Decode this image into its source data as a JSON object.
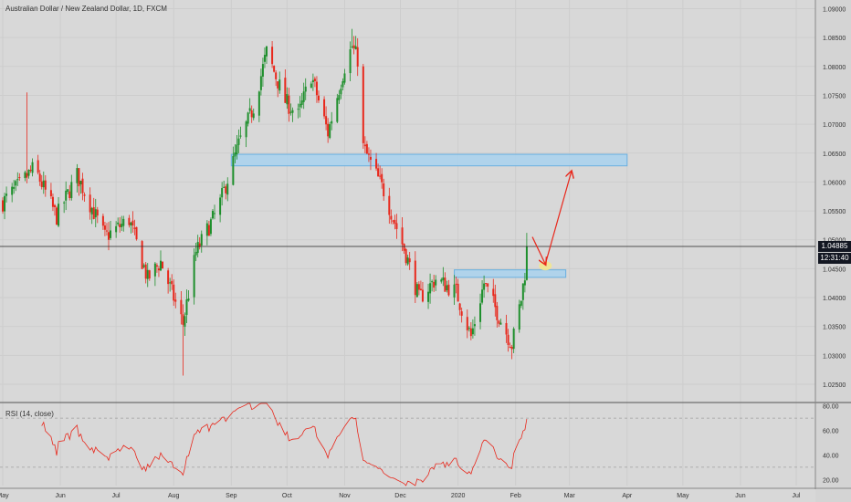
{
  "header": {
    "title": "Australian Dollar / New Zealand Dollar, 1D, FXCM"
  },
  "rsi_panel": {
    "title": "RSI (14, close)"
  },
  "price_axis": {
    "current_price": "1.04885",
    "countdown": "12:31:40"
  },
  "colors": {
    "background": "#d8d8d8",
    "up_candle": "#1e8f2c",
    "down_candle": "#e8281c",
    "zone_fill": "#a9d2ef",
    "zone_stroke": "#6ab0e0",
    "arrow": "#e8281c",
    "rsi_line": "#e8281c",
    "price_badge": "#131722"
  },
  "chart_data": [
    {
      "type": "candlestick",
      "symbol": "AUDNZD",
      "timeframe": "1D",
      "ylim": [
        1.022,
        1.0915
      ],
      "y_ticks": [
        "1.09000",
        "1.08500",
        "1.08000",
        "1.07500",
        "1.07000",
        "1.06500",
        "1.06000",
        "1.05500",
        "1.05000",
        "1.04500",
        "1.04000",
        "1.03500",
        "1.03000",
        "1.02500"
      ],
      "y_tick_values": [
        1.09,
        1.085,
        1.08,
        1.075,
        1.07,
        1.065,
        1.06,
        1.055,
        1.05,
        1.045,
        1.04,
        1.035,
        1.03,
        1.025
      ],
      "x_ticks": [
        "May",
        "Jun",
        "Jul",
        "Aug",
        "Sep",
        "Oct",
        "Nov",
        "Dec",
        "2020",
        "Feb",
        "Mar",
        "Apr",
        "May",
        "Jun",
        "Jul"
      ],
      "x_tick_dates": [
        "2019-05-01",
        "2019-06-01",
        "2019-07-01",
        "2019-08-01",
        "2019-09-01",
        "2019-10-01",
        "2019-11-01",
        "2019-12-01",
        "2020-01-01",
        "2020-02-01",
        "2020-03-01",
        "2020-04-01",
        "2020-05-01",
        "2020-06-01",
        "2020-07-01"
      ],
      "current_price_line": 1.04885,
      "zones": [
        {
          "from": "2019-09-01",
          "to": "2020-04-01",
          "low": 1.0628,
          "high": 1.0648
        },
        {
          "from": "2019-12-30",
          "to": "2020-02-28",
          "low": 1.0435,
          "high": 1.0448
        }
      ],
      "projection_arrows": [
        {
          "from": [
            "2020-02-10",
            1.0505
          ],
          "to": [
            "2020-02-17",
            1.0458
          ]
        },
        {
          "from": [
            "2020-02-17",
            1.0458
          ],
          "to": [
            "2020-03-02",
            1.0618
          ]
        }
      ],
      "highlight_circle": {
        "at": [
          "2020-02-17",
          1.0455
        ]
      },
      "anchors": [
        {
          "date": "2019-05-01",
          "close": 1.0565
        },
        {
          "date": "2019-05-10",
          "close": 1.0595
        },
        {
          "date": "2019-05-18",
          "close": 1.0625
        },
        {
          "date": "2019-05-30",
          "close": 1.054
        },
        {
          "date": "2019-06-10",
          "close": 1.0612
        },
        {
          "date": "2019-06-25",
          "close": 1.0505
        },
        {
          "date": "2019-07-08",
          "close": 1.0535
        },
        {
          "date": "2019-07-18",
          "close": 1.0432
        },
        {
          "date": "2019-07-25",
          "close": 1.0462
        },
        {
          "date": "2019-08-06",
          "close": 1.0355
        },
        {
          "date": "2019-08-13",
          "close": 1.0478
        },
        {
          "date": "2019-08-25",
          "close": 1.0555
        },
        {
          "date": "2019-09-05",
          "close": 1.0665
        },
        {
          "date": "2019-09-13",
          "close": 1.073
        },
        {
          "date": "2019-09-20",
          "close": 1.0825
        },
        {
          "date": "2019-09-30",
          "close": 1.074
        },
        {
          "date": "2019-10-07",
          "close": 1.0715
        },
        {
          "date": "2019-10-14",
          "close": 1.0785
        },
        {
          "date": "2019-10-23",
          "close": 1.0685
        },
        {
          "date": "2019-11-01",
          "close": 1.08
        },
        {
          "date": "2019-11-05",
          "close": 1.0835
        },
        {
          "date": "2019-11-09",
          "close": 1.0805
        },
        {
          "date": "2019-11-11",
          "close": 1.066
        },
        {
          "date": "2019-11-22",
          "close": 1.0585
        },
        {
          "date": "2019-12-04",
          "close": 1.0475
        },
        {
          "date": "2019-12-11",
          "close": 1.0398
        },
        {
          "date": "2019-12-20",
          "close": 1.0432
        },
        {
          "date": "2019-12-31",
          "close": 1.041
        },
        {
          "date": "2020-01-08",
          "close": 1.0332
        },
        {
          "date": "2020-01-15",
          "close": 1.0425
        },
        {
          "date": "2020-01-22",
          "close": 1.0375
        },
        {
          "date": "2020-01-30",
          "close": 1.0318
        },
        {
          "date": "2020-02-04",
          "close": 1.0398
        },
        {
          "date": "2020-02-08",
          "close": 1.0488
        }
      ]
    },
    {
      "type": "line",
      "name": "RSI (14, close)",
      "ylim": [
        15,
        82
      ],
      "y_ticks": [
        "80.00",
        "60.00",
        "40.00",
        "20.00"
      ],
      "y_tick_values": [
        80,
        60,
        40,
        20
      ],
      "levels": [
        70,
        30
      ],
      "x_ticks": [
        "May",
        "Jun",
        "Jul",
        "Aug",
        "Sep",
        "Oct",
        "Nov",
        "Dec",
        "2020",
        "Feb",
        "Mar",
        "Apr",
        "May",
        "Jun",
        "Jul"
      ]
    }
  ]
}
